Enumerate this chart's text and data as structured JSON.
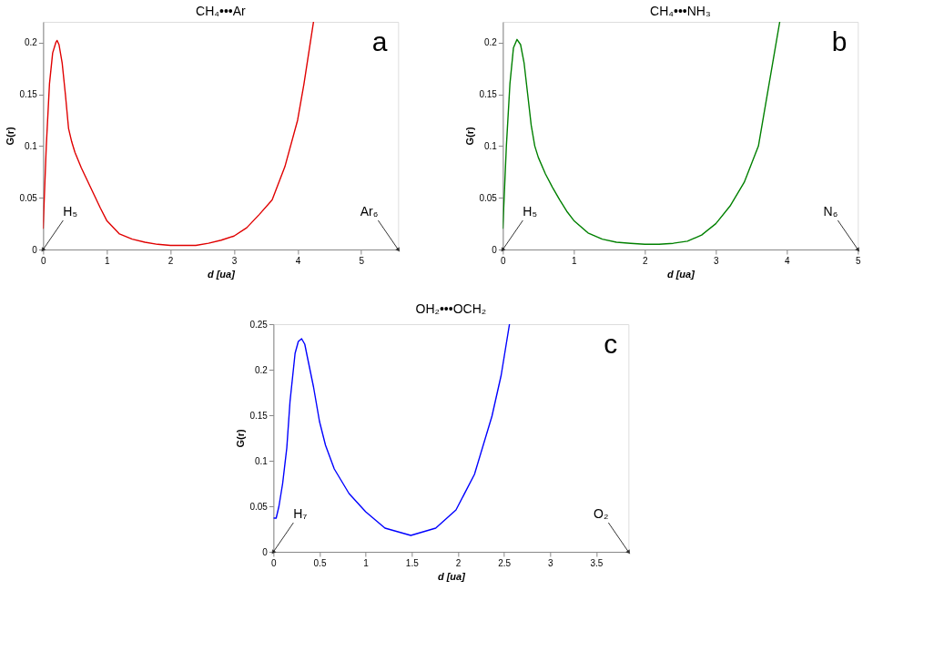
{
  "chart_data": [
    {
      "type": "line",
      "title": "CH₄•••Ar",
      "xlabel": "d [ua]",
      "ylabel": "G(r)",
      "xlim": [
        0,
        5.58
      ],
      "ylim": [
        0,
        0.22
      ],
      "xticks": [
        0,
        1,
        2,
        3,
        4,
        5
      ],
      "yticks": [
        0,
        0.05,
        0.1,
        0.15,
        0.2
      ],
      "grid": false,
      "legend": false,
      "series": [
        {
          "color": "#e00000",
          "x": [
            0,
            0.05,
            0.1,
            0.15,
            0.2,
            0.22,
            0.25,
            0.3,
            0.35,
            0.4,
            0.45,
            0.5,
            0.6,
            0.7,
            0.8,
            0.9,
            1.0,
            1.2,
            1.4,
            1.6,
            1.8,
            2.0,
            2.2,
            2.4,
            2.6,
            2.8,
            3.0,
            3.2,
            3.4,
            3.6,
            3.8,
            4.0,
            4.1,
            4.2,
            4.25
          ],
          "values": [
            0.02,
            0.1,
            0.16,
            0.19,
            0.2,
            0.202,
            0.198,
            0.18,
            0.15,
            0.117,
            0.104,
            0.094,
            0.079,
            0.066,
            0.053,
            0.04,
            0.028,
            0.015,
            0.01,
            0.007,
            0.005,
            0.004,
            0.004,
            0.004,
            0.006,
            0.009,
            0.013,
            0.021,
            0.034,
            0.048,
            0.08,
            0.125,
            0.16,
            0.2,
            0.22
          ]
        }
      ],
      "annotations": [
        "a",
        {
          "text": "H₅",
          "x": 0,
          "y": 0
        },
        {
          "text": "Ar₆",
          "x": 5.58,
          "y": 0
        }
      ]
    },
    {
      "type": "line",
      "title": "CH₄•••NH₃",
      "xlabel": "d [ua]",
      "ylabel": "G(r)",
      "xlim": [
        0,
        5
      ],
      "ylim": [
        0,
        0.22
      ],
      "xticks": [
        0,
        1,
        2,
        3,
        4,
        5
      ],
      "yticks": [
        0,
        0.05,
        0.1,
        0.15,
        0.2
      ],
      "grid": false,
      "legend": false,
      "series": [
        {
          "color": "#008000",
          "x": [
            0,
            0.05,
            0.1,
            0.15,
            0.2,
            0.25,
            0.3,
            0.35,
            0.4,
            0.45,
            0.5,
            0.6,
            0.7,
            0.8,
            0.9,
            1.0,
            1.2,
            1.4,
            1.6,
            1.8,
            2.0,
            2.2,
            2.4,
            2.6,
            2.8,
            3.0,
            3.2,
            3.4,
            3.6,
            3.8,
            3.9
          ],
          "values": [
            0.02,
            0.1,
            0.16,
            0.195,
            0.203,
            0.198,
            0.18,
            0.15,
            0.12,
            0.1,
            0.089,
            0.073,
            0.06,
            0.048,
            0.037,
            0.028,
            0.016,
            0.01,
            0.007,
            0.006,
            0.005,
            0.005,
            0.006,
            0.008,
            0.014,
            0.025,
            0.042,
            0.065,
            0.1,
            0.18,
            0.22
          ]
        }
      ],
      "annotations": [
        "b",
        {
          "text": "H₅",
          "x": 0,
          "y": 0
        },
        {
          "text": "N₆",
          "x": 5,
          "y": 0
        }
      ]
    },
    {
      "type": "line",
      "title": "OH₂•••OCH₂",
      "xlabel": "d [ua]",
      "ylabel": "G(r)",
      "xlim": [
        0,
        3.85
      ],
      "ylim": [
        0,
        0.25
      ],
      "xticks": [
        0,
        0.5,
        1,
        1.5,
        2,
        2.5,
        3,
        3.5
      ],
      "yticks": [
        0,
        0.05,
        0.1,
        0.15,
        0.2,
        0.25
      ],
      "grid": false,
      "legend": false,
      "series": [
        {
          "color": "#0000ff",
          "x": [
            0,
            0.03,
            0.06,
            0.1,
            0.145,
            0.18,
            0.235,
            0.27,
            0.306,
            0.34,
            0.37,
            0.435,
            0.5,
            0.565,
            0.66,
            0.82,
            1.0,
            1.21,
            1.49,
            1.76,
            1.98,
            2.18,
            2.37,
            2.47,
            2.56
          ],
          "values": [
            0.037,
            0.037,
            0.05,
            0.075,
            0.114,
            0.165,
            0.218,
            0.231,
            0.234,
            0.228,
            0.213,
            0.181,
            0.143,
            0.117,
            0.091,
            0.064,
            0.044,
            0.026,
            0.018,
            0.026,
            0.046,
            0.085,
            0.149,
            0.194,
            0.25
          ]
        }
      ],
      "annotations": [
        "c",
        {
          "text": "H₇",
          "x": 0,
          "y": 0
        },
        {
          "text": "O₂",
          "x": 3.85,
          "y": 0
        }
      ]
    }
  ]
}
